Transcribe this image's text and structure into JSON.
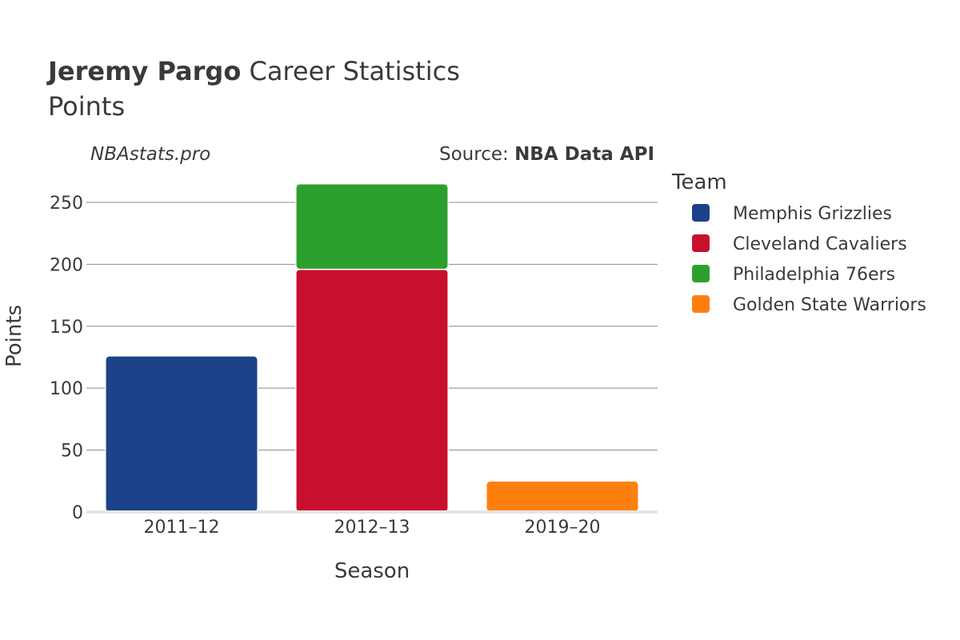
{
  "header": {
    "title_bold": "Jeremy Pargo",
    "title_rest": " Career Statistics",
    "subtitle": "Points",
    "watermark": "NBAstats.pro",
    "source_prefix": "Source: ",
    "source_bold": "NBA Data API"
  },
  "legend": {
    "title": "Team"
  },
  "chart_data": {
    "type": "bar",
    "stacked": true,
    "xlabel": "Season",
    "ylabel": "Points",
    "ylim": [
      0,
      270
    ],
    "yticks": [
      0,
      50,
      100,
      150,
      200,
      250
    ],
    "grid": true,
    "legend_position": "right",
    "categories": [
      "2011–12",
      "2012–13",
      "2019–20"
    ],
    "series": [
      {
        "name": "Memphis Grizzlies",
        "color": "#1d428a",
        "values": [
          126,
          0,
          0
        ]
      },
      {
        "name": "Cleveland Cavaliers",
        "color": "#c8102e",
        "values": [
          0,
          196,
          0
        ]
      },
      {
        "name": "Philadelphia 76ers",
        "color": "#2ca02c",
        "values": [
          0,
          69,
          0
        ]
      },
      {
        "name": "Golden State Warriors",
        "color": "#ff7f0e",
        "values": [
          0,
          0,
          25
        ]
      }
    ]
  }
}
